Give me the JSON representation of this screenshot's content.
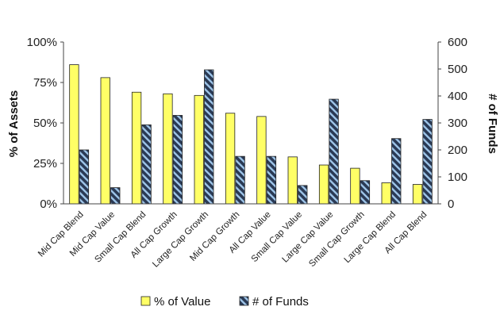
{
  "chart_data": {
    "type": "bar",
    "categories": [
      "Mid Cap Blend",
      "Mid Cap Value",
      "Small Cap Blend",
      "All Cap Growth",
      "Large Cap Growth",
      "Mid Cap Growth",
      "All Cap Value",
      "Small Cap Value",
      "Large Cap Value",
      "Small Cap Growth",
      "Large Cap Blend",
      "All Cap Blend"
    ],
    "series": [
      {
        "name": "% of Value",
        "axis": "left",
        "color": "#ffff66",
        "values": [
          86,
          78,
          69,
          68,
          67,
          56,
          54,
          29,
          24,
          22,
          13,
          12
        ]
      },
      {
        "name": "# of Funds",
        "axis": "right",
        "color": "#2a3a55",
        "values": [
          200,
          60,
          293,
          328,
          497,
          176,
          176,
          68,
          388,
          86,
          242,
          313
        ]
      }
    ],
    "ylabel": "% of Assets",
    "ylabel_right": "# of Funds",
    "ylim": [
      0,
      100
    ],
    "ylim_right": [
      0,
      600
    ],
    "yticks": [
      "0%",
      "25%",
      "50%",
      "75%",
      "100%"
    ],
    "yticks_right": [
      "0",
      "100",
      "200",
      "300",
      "400",
      "500",
      "600"
    ],
    "legend": "bottom",
    "grid": false
  }
}
